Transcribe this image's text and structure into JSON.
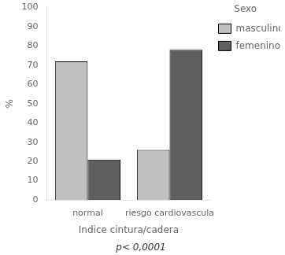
{
  "chart_data": {
    "type": "bar",
    "categories": [
      "normal",
      "riesgo cardiovascula"
    ],
    "series": [
      {
        "name": "masculino",
        "color": "#c0c0c0",
        "values": [
          72,
          26
        ]
      },
      {
        "name": "femenino",
        "color": "#606060",
        "values": [
          21,
          78
        ]
      }
    ],
    "ylabel": "%",
    "xlabel": "Indice cintura/cadera",
    "legend_title": "Sexo",
    "annotation": "p< 0,0001",
    "ylim": [
      0,
      100
    ],
    "yticks": [
      0,
      10,
      20,
      30,
      40,
      50,
      60,
      70,
      80,
      90,
      100
    ],
    "legend": "right",
    "grid": false
  }
}
